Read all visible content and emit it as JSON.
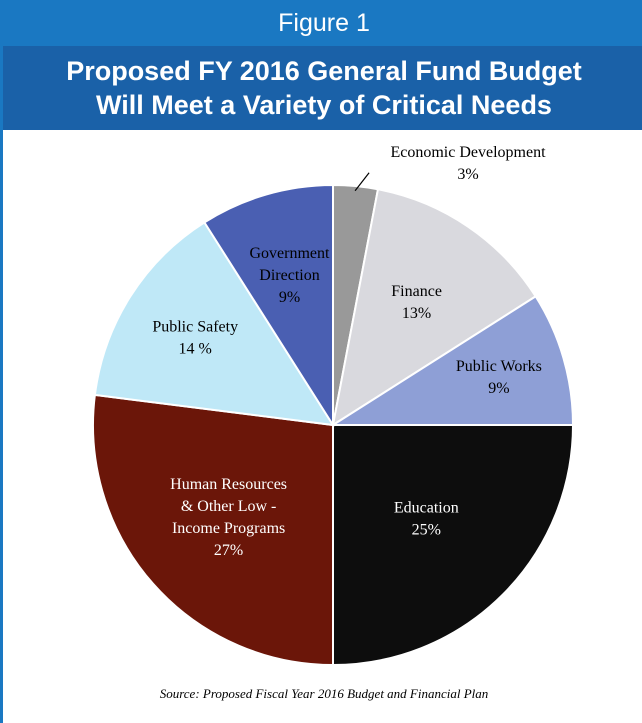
{
  "figure_label": "Figure 1",
  "title_line1": "Proposed FY 2016 General Fund Budget",
  "title_line2": "Will Meet a Variety of Critical Needs",
  "source": "Source: Proposed Fiscal Year 2016 Budget and Financial Plan",
  "colors": {
    "header_bar": "#1a78c2",
    "title_bar": "#1a61a8",
    "border": "#1a78c2"
  },
  "chart_data": {
    "type": "pie",
    "title": "",
    "start": "12 o'clock",
    "direction": "clockwise",
    "slices": [
      {
        "label": "Economic Development",
        "value_label": "3%",
        "value": 3,
        "color": "#999999",
        "text_color": "#000000",
        "label_lines": [
          "Economic Development"
        ]
      },
      {
        "label": "Finance",
        "value_label": "13%",
        "value": 13,
        "color": "#d9d9de",
        "text_color": "#000000",
        "label_lines": [
          "Finance"
        ]
      },
      {
        "label": "Public Works",
        "value_label": "9%",
        "value": 9,
        "color": "#8e9fd6",
        "text_color": "#000000",
        "label_lines": [
          "Public Works"
        ]
      },
      {
        "label": "Education",
        "value_label": "25%",
        "value": 25,
        "color": "#0d0d0d",
        "text_color": "#ffffff",
        "label_lines": [
          "Education"
        ]
      },
      {
        "label": "Human Resources & Other Low - Income Programs",
        "value_label": "27%",
        "value": 27,
        "color": "#6b1609",
        "text_color": "#ffffff",
        "label_lines": [
          "Human Resources",
          "& Other Low -",
          "Income Programs"
        ]
      },
      {
        "label": "Public Safety",
        "value_label": "14 %",
        "value": 14,
        "color": "#bfe8f7",
        "text_color": "#000000",
        "label_lines": [
          "Public Safety"
        ]
      },
      {
        "label": "Government Direction",
        "value_label": "9%",
        "value": 9,
        "color": "#4a5fb2",
        "text_color": "#000000",
        "label_lines": [
          "Government",
          "Direction"
        ]
      }
    ]
  }
}
